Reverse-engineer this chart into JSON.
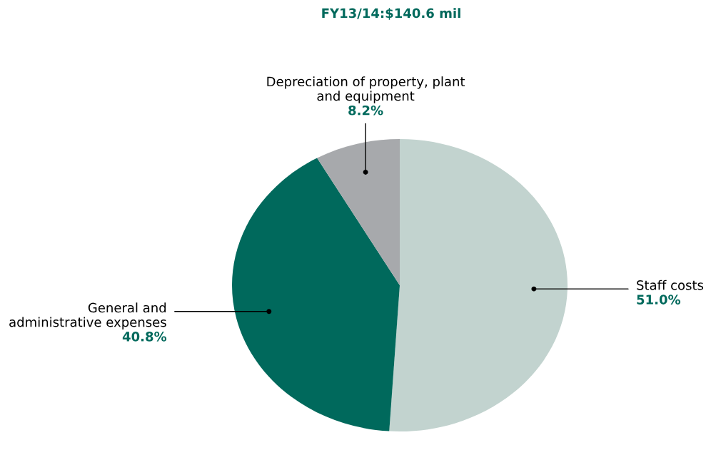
{
  "chart_data": {
    "type": "pie",
    "title": "FY13/14:$140.6 mil",
    "categories": [
      "Staff costs",
      "General and\nadministrative expenses",
      "Depreciation of property, plant\nand equipment"
    ],
    "values": [
      51.0,
      40.8,
      8.2
    ],
    "value_labels": [
      "51.0%",
      "40.8%",
      "8.2%"
    ],
    "colors": [
      "#c2d3cf",
      "#00695c",
      "#a7a9ac"
    ]
  }
}
